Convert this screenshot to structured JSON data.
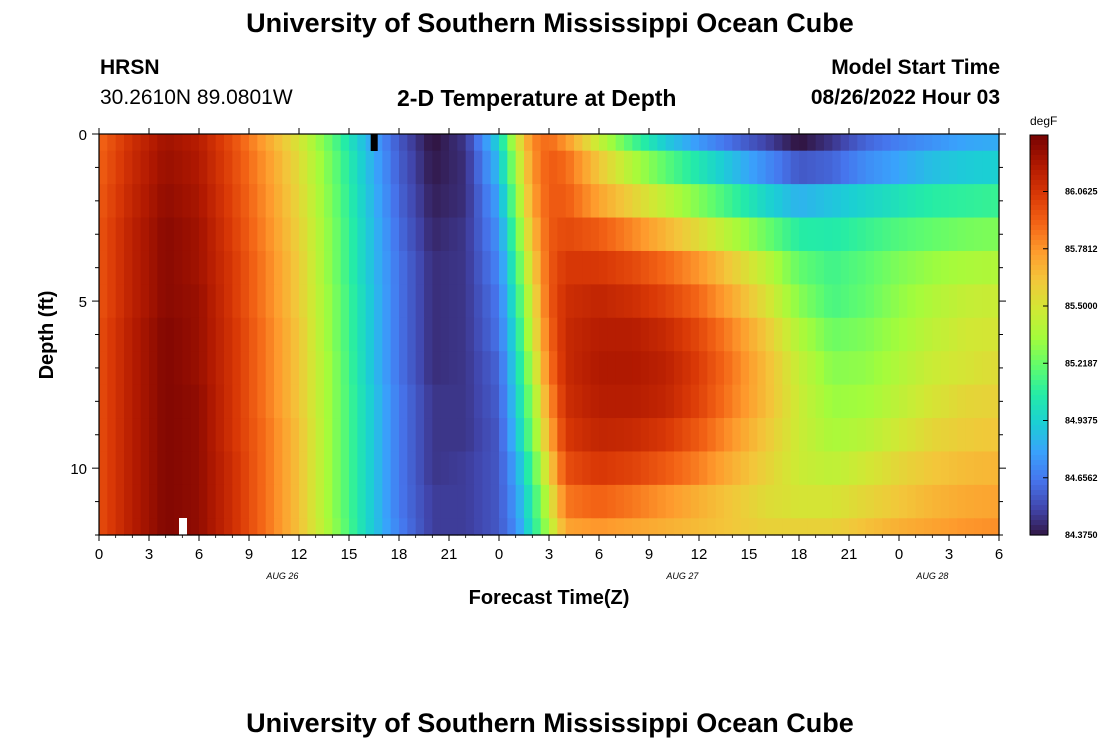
{
  "title": "University of Southern Mississippi Ocean Cube",
  "title_repeat": "University of Southern Mississippi Ocean Cube",
  "station": {
    "name": "HRSN",
    "coords": "30.2610N  89.0801W"
  },
  "subtitle": "2-D Temperature at Depth",
  "model": {
    "label": "Model Start Time",
    "value": "08/26/2022 Hour 03"
  },
  "chart_data": {
    "type": "heatmap",
    "xlabel": "Forecast Time(Z)",
    "ylabel": "Depth (ft)",
    "x_tick_labels": [
      "0",
      "3",
      "6",
      "9",
      "12",
      "15",
      "18",
      "21",
      "0",
      "3",
      "6",
      "9",
      "12",
      "15",
      "18",
      "21",
      "0",
      "3",
      "6"
    ],
    "x_hours": [
      0,
      3,
      6,
      9,
      12,
      15,
      18,
      21,
      24,
      27,
      30,
      33,
      36,
      39,
      42,
      45,
      48,
      51,
      54
    ],
    "date_labels": [
      {
        "text": "AUG 26",
        "hour": 11
      },
      {
        "text": "AUG 27",
        "hour": 35
      },
      {
        "text": "AUG 28",
        "hour": 50
      }
    ],
    "xlim": [
      0,
      54
    ],
    "y_ticks": [
      0,
      5,
      10
    ],
    "ylim": [
      0,
      12
    ],
    "colorbar": {
      "unit": "degF",
      "labels": [
        "86.0625",
        "85.7812",
        "85.5000",
        "85.2187",
        "84.9375",
        "84.6562",
        "84.3750"
      ],
      "range": [
        84.375,
        86.34
      ]
    },
    "colors": [
      "#30123b",
      "#4145ab",
      "#4675ed",
      "#39a2fc",
      "#1bcfd4",
      "#24eca6",
      "#61fc6c",
      "#a4fc3b",
      "#d1e834",
      "#f3c63a",
      "#fe9b2d",
      "#f36315",
      "#d93806",
      "#b11901",
      "#7a0402"
    ],
    "depth_levels": [
      0,
      1,
      2,
      3,
      4,
      5,
      6,
      7,
      8,
      9,
      10,
      11,
      12
    ],
    "z_model": "temperature degF by hour and depth; estimated from color scale"
  }
}
